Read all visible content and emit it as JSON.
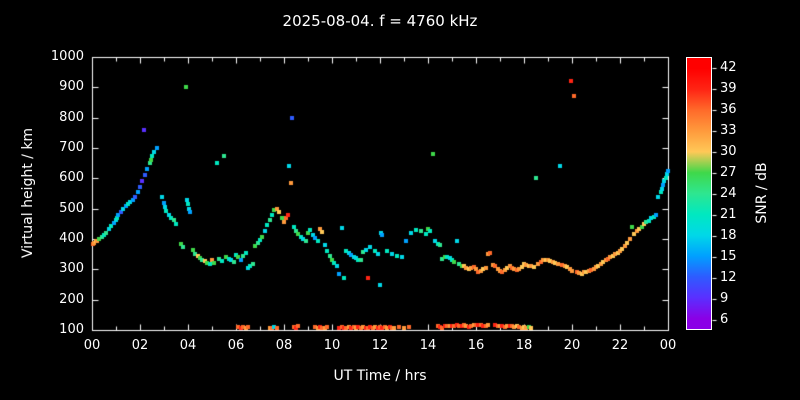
{
  "title": "2025-08-04. f = 4760 kHz",
  "colors": {
    "background": "#000000",
    "frame": "#ffffff",
    "text": "#ffffff"
  },
  "chart_data": {
    "type": "scatter",
    "title": "2025-08-04. f = 4760 kHz",
    "xlabel": "UT Time / hrs",
    "ylabel": "Virtual height / km",
    "colorbar_label": "SNR / dB",
    "xlim": [
      0,
      24
    ],
    "ylim": [
      100,
      1000
    ],
    "grid": false,
    "x_ticks": {
      "values": [
        0,
        2,
        4,
        6,
        8,
        10,
        12,
        14,
        16,
        18,
        20,
        22,
        24
      ],
      "labels": [
        "00",
        "02",
        "04",
        "06",
        "08",
        "10",
        "12",
        "14",
        "16",
        "18",
        "20",
        "22",
        "00"
      ]
    },
    "y_ticks": [
      100,
      200,
      300,
      400,
      500,
      600,
      700,
      800,
      900,
      1000
    ],
    "colorbar": {
      "min": 4.5,
      "max": 43.5,
      "ticks": [
        42,
        39,
        36,
        33,
        30,
        27,
        24,
        21,
        18,
        15,
        12,
        9,
        6
      ],
      "stops": [
        {
          "v": 6,
          "c": "#8a00e6"
        },
        {
          "v": 9,
          "c": "#5a2fff"
        },
        {
          "v": 12,
          "c": "#2e5bff"
        },
        {
          "v": 15,
          "c": "#00a0ff"
        },
        {
          "v": 18,
          "c": "#00d8e8"
        },
        {
          "v": 21,
          "c": "#00e8c0"
        },
        {
          "v": 24,
          "c": "#2ee690"
        },
        {
          "v": 27,
          "c": "#3fd84a"
        },
        {
          "v": 30,
          "c": "#ffc857"
        },
        {
          "v": 33,
          "c": "#ff9a3c"
        },
        {
          "v": 36,
          "c": "#ff6a2a"
        },
        {
          "v": 39,
          "c": "#ff2414"
        },
        {
          "v": 42,
          "c": "#ff0000"
        }
      ]
    },
    "points": [
      [
        0.05,
        385,
        36
      ],
      [
        0.1,
        388,
        33
      ],
      [
        0.15,
        392,
        30
      ],
      [
        0.2,
        395,
        33
      ],
      [
        0.3,
        400,
        27
      ],
      [
        0.4,
        405,
        24
      ],
      [
        0.5,
        412,
        21
      ],
      [
        0.6,
        420,
        24
      ],
      [
        0.7,
        432,
        18
      ],
      [
        0.8,
        442,
        21
      ],
      [
        0.9,
        452,
        15
      ],
      [
        1.0,
        462,
        18
      ],
      [
        1.05,
        470,
        21
      ],
      [
        1.1,
        478,
        15
      ],
      [
        1.2,
        488,
        12
      ],
      [
        1.3,
        498,
        18
      ],
      [
        1.4,
        508,
        15
      ],
      [
        1.5,
        515,
        21
      ],
      [
        1.6,
        522,
        18
      ],
      [
        1.7,
        530,
        15
      ],
      [
        1.8,
        540,
        12
      ],
      [
        1.9,
        555,
        15
      ],
      [
        2.0,
        572,
        12
      ],
      [
        2.1,
        590,
        9
      ],
      [
        2.15,
        760,
        9
      ],
      [
        2.2,
        612,
        12
      ],
      [
        2.3,
        632,
        15
      ],
      [
        2.4,
        650,
        24
      ],
      [
        2.45,
        660,
        27
      ],
      [
        2.5,
        672,
        21
      ],
      [
        2.6,
        688,
        18
      ],
      [
        2.7,
        700,
        15
      ],
      [
        2.9,
        540,
        18
      ],
      [
        3.0,
        520,
        15
      ],
      [
        3.05,
        505,
        18
      ],
      [
        3.1,
        492,
        21
      ],
      [
        3.2,
        480,
        18
      ],
      [
        3.3,
        470,
        21
      ],
      [
        3.4,
        462,
        24
      ],
      [
        3.5,
        450,
        21
      ],
      [
        3.7,
        385,
        27
      ],
      [
        3.8,
        375,
        24
      ],
      [
        3.9,
        900,
        27
      ],
      [
        3.95,
        530,
        18
      ],
      [
        4.0,
        515,
        21
      ],
      [
        4.05,
        500,
        18
      ],
      [
        4.1,
        488,
        15
      ],
      [
        4.2,
        365,
        27
      ],
      [
        4.3,
        352,
        24
      ],
      [
        4.4,
        345,
        30
      ],
      [
        4.5,
        338,
        27
      ],
      [
        4.6,
        332,
        24
      ],
      [
        4.7,
        328,
        30
      ],
      [
        4.8,
        322,
        27
      ],
      [
        4.9,
        318,
        21
      ],
      [
        5.0,
        330,
        33
      ],
      [
        5.1,
        322,
        27
      ],
      [
        5.2,
        650,
        21
      ],
      [
        5.3,
        335,
        24
      ],
      [
        5.4,
        328,
        21
      ],
      [
        5.5,
        675,
        24
      ],
      [
        5.6,
        342,
        27
      ],
      [
        5.7,
        335,
        21
      ],
      [
        5.8,
        330,
        18
      ],
      [
        5.9,
        325,
        24
      ],
      [
        6.0,
        348,
        21
      ],
      [
        6.1,
        340,
        27
      ],
      [
        6.2,
        332,
        15
      ],
      [
        6.3,
        345,
        24
      ],
      [
        6.4,
        355,
        21
      ],
      [
        6.5,
        305,
        18
      ],
      [
        6.6,
        310,
        21
      ],
      [
        6.7,
        318,
        24
      ],
      [
        6.8,
        378,
        27
      ],
      [
        6.9,
        388,
        24
      ],
      [
        7.0,
        398,
        21
      ],
      [
        7.1,
        408,
        27
      ],
      [
        7.2,
        425,
        18
      ],
      [
        7.3,
        445,
        21
      ],
      [
        7.4,
        462,
        24
      ],
      [
        7.5,
        480,
        21
      ],
      [
        7.6,
        495,
        27
      ],
      [
        7.7,
        500,
        33
      ],
      [
        7.8,
        488,
        30
      ],
      [
        7.9,
        470,
        27
      ],
      [
        8.0,
        455,
        33
      ],
      [
        8.1,
        468,
        36
      ],
      [
        8.15,
        478,
        39
      ],
      [
        8.2,
        640,
        18
      ],
      [
        8.3,
        585,
        33
      ],
      [
        8.35,
        800,
        12
      ],
      [
        8.4,
        438,
        21
      ],
      [
        8.5,
        425,
        24
      ],
      [
        8.6,
        415,
        27
      ],
      [
        8.7,
        408,
        21
      ],
      [
        8.8,
        400,
        18
      ],
      [
        8.9,
        395,
        24
      ],
      [
        9.0,
        420,
        27
      ],
      [
        9.1,
        430,
        21
      ],
      [
        9.2,
        412,
        18
      ],
      [
        9.3,
        402,
        15
      ],
      [
        9.4,
        392,
        21
      ],
      [
        9.5,
        432,
        33
      ],
      [
        9.6,
        422,
        30
      ],
      [
        9.7,
        380,
        18
      ],
      [
        9.8,
        362,
        21
      ],
      [
        9.9,
        345,
        24
      ],
      [
        10.0,
        332,
        27
      ],
      [
        10.1,
        322,
        21
      ],
      [
        10.2,
        312,
        18
      ],
      [
        10.3,
        285,
        15
      ],
      [
        10.4,
        435,
        18
      ],
      [
        10.5,
        272,
        21
      ],
      [
        10.6,
        362,
        21
      ],
      [
        10.7,
        355,
        18
      ],
      [
        10.8,
        348,
        15
      ],
      [
        10.9,
        342,
        18
      ],
      [
        11.0,
        338,
        18
      ],
      [
        11.1,
        332,
        21
      ],
      [
        11.2,
        330,
        24
      ],
      [
        11.3,
        358,
        24
      ],
      [
        11.4,
        365,
        18
      ],
      [
        11.5,
        270,
        39
      ],
      [
        11.6,
        372,
        18
      ],
      [
        11.8,
        362,
        21
      ],
      [
        11.9,
        352,
        18
      ],
      [
        12.0,
        250,
        18
      ],
      [
        12.05,
        420,
        18
      ],
      [
        12.1,
        412,
        15
      ],
      [
        12.3,
        362,
        21
      ],
      [
        12.5,
        352,
        18
      ],
      [
        12.7,
        345,
        21
      ],
      [
        12.9,
        340,
        18
      ],
      [
        13.1,
        392,
        15
      ],
      [
        13.3,
        420,
        18
      ],
      [
        13.5,
        430,
        21
      ],
      [
        13.7,
        425,
        24
      ],
      [
        13.9,
        418,
        21
      ],
      [
        14.0,
        432,
        27
      ],
      [
        14.1,
        425,
        21
      ],
      [
        14.2,
        680,
        27
      ],
      [
        14.3,
        392,
        18
      ],
      [
        14.4,
        385,
        21
      ],
      [
        14.5,
        380,
        24
      ],
      [
        14.6,
        335,
        24
      ],
      [
        14.7,
        340,
        27
      ],
      [
        14.8,
        342,
        21
      ],
      [
        14.9,
        338,
        18
      ],
      [
        15.0,
        332,
        21
      ],
      [
        15.1,
        325,
        27
      ],
      [
        15.2,
        392,
        18
      ],
      [
        15.3,
        318,
        24
      ],
      [
        15.4,
        312,
        27
      ],
      [
        15.5,
        310,
        30
      ],
      [
        15.6,
        305,
        33
      ],
      [
        15.7,
        302,
        30
      ],
      [
        15.8,
        305,
        33
      ],
      [
        15.9,
        308,
        36
      ],
      [
        16.0,
        302,
        33
      ],
      [
        16.1,
        292,
        36
      ],
      [
        16.2,
        295,
        33
      ],
      [
        16.3,
        300,
        30
      ],
      [
        16.4,
        305,
        33
      ],
      [
        16.5,
        350,
        33
      ],
      [
        16.6,
        355,
        36
      ],
      [
        16.7,
        315,
        33
      ],
      [
        16.8,
        310,
        36
      ],
      [
        16.9,
        302,
        33
      ],
      [
        17.0,
        296,
        33
      ],
      [
        17.1,
        290,
        36
      ],
      [
        17.2,
        298,
        33
      ],
      [
        17.3,
        305,
        30
      ],
      [
        17.4,
        310,
        33
      ],
      [
        17.5,
        306,
        36
      ],
      [
        17.6,
        302,
        33
      ],
      [
        17.7,
        298,
        36
      ],
      [
        17.8,
        302,
        33
      ],
      [
        17.9,
        308,
        30
      ],
      [
        18.0,
        318,
        30
      ],
      [
        18.1,
        315,
        33
      ],
      [
        18.2,
        312,
        30
      ],
      [
        18.3,
        310,
        33
      ],
      [
        18.4,
        308,
        30
      ],
      [
        18.5,
        600,
        24
      ],
      [
        18.6,
        318,
        33
      ],
      [
        18.7,
        325,
        36
      ],
      [
        18.8,
        330,
        33
      ],
      [
        18.9,
        332,
        30
      ],
      [
        19.0,
        330,
        33
      ],
      [
        19.1,
        328,
        30
      ],
      [
        19.2,
        325,
        33
      ],
      [
        19.3,
        322,
        30
      ],
      [
        19.4,
        318,
        33
      ],
      [
        19.5,
        640,
        18
      ],
      [
        19.6,
        315,
        36
      ],
      [
        19.7,
        312,
        33
      ],
      [
        19.8,
        308,
        30
      ],
      [
        19.9,
        302,
        33
      ],
      [
        19.95,
        920,
        39
      ],
      [
        20.1,
        870,
        36
      ],
      [
        20.0,
        296,
        33
      ],
      [
        20.2,
        290,
        36
      ],
      [
        20.3,
        288,
        33
      ],
      [
        20.4,
        286,
        30
      ],
      [
        20.5,
        290,
        33
      ],
      [
        20.6,
        292,
        30
      ],
      [
        20.7,
        296,
        33
      ],
      [
        20.8,
        298,
        36
      ],
      [
        20.9,
        300,
        33
      ],
      [
        21.0,
        308,
        33
      ],
      [
        21.1,
        312,
        30
      ],
      [
        21.2,
        318,
        33
      ],
      [
        21.3,
        325,
        30
      ],
      [
        21.4,
        330,
        33
      ],
      [
        21.5,
        335,
        36
      ],
      [
        21.6,
        340,
        33
      ],
      [
        21.7,
        345,
        30
      ],
      [
        21.8,
        350,
        33
      ],
      [
        21.9,
        355,
        30
      ],
      [
        22.0,
        360,
        33
      ],
      [
        22.1,
        368,
        30
      ],
      [
        22.2,
        378,
        33
      ],
      [
        22.3,
        388,
        30
      ],
      [
        22.4,
        400,
        33
      ],
      [
        22.5,
        440,
        27
      ],
      [
        22.6,
        418,
        30
      ],
      [
        22.7,
        425,
        33
      ],
      [
        22.8,
        432,
        30
      ],
      [
        22.9,
        440,
        27
      ],
      [
        23.0,
        450,
        30
      ],
      [
        23.1,
        455,
        24
      ],
      [
        23.2,
        460,
        21
      ],
      [
        23.3,
        468,
        18
      ],
      [
        23.4,
        472,
        21
      ],
      [
        23.5,
        480,
        15
      ],
      [
        23.6,
        540,
        18
      ],
      [
        23.7,
        555,
        21
      ],
      [
        23.75,
        565,
        18
      ],
      [
        23.8,
        578,
        15
      ],
      [
        23.85,
        590,
        18
      ],
      [
        23.9,
        600,
        21
      ],
      [
        23.95,
        615,
        18
      ],
      [
        23.98,
        625,
        15
      ],
      [
        6.1,
        110,
        36
      ],
      [
        6.2,
        108,
        39
      ],
      [
        6.3,
        110,
        36
      ],
      [
        6.4,
        108,
        33
      ],
      [
        6.5,
        110,
        36
      ],
      [
        7.4,
        106,
        33
      ],
      [
        7.5,
        108,
        36
      ],
      [
        7.6,
        110,
        18
      ],
      [
        7.7,
        108,
        36
      ],
      [
        8.4,
        110,
        36
      ],
      [
        8.5,
        108,
        39
      ],
      [
        8.6,
        112,
        36
      ],
      [
        9.3,
        110,
        36
      ],
      [
        9.4,
        108,
        33
      ],
      [
        9.5,
        110,
        39
      ],
      [
        9.6,
        106,
        36
      ],
      [
        9.7,
        108,
        33
      ],
      [
        9.8,
        110,
        36
      ],
      [
        10.3,
        108,
        39
      ],
      [
        10.4,
        110,
        36
      ],
      [
        10.5,
        106,
        39
      ],
      [
        10.6,
        108,
        36
      ],
      [
        10.7,
        110,
        33
      ],
      [
        10.8,
        108,
        39
      ],
      [
        10.9,
        110,
        36
      ],
      [
        11.0,
        108,
        33
      ],
      [
        11.1,
        110,
        39
      ],
      [
        11.2,
        108,
        36
      ],
      [
        11.3,
        110,
        33
      ],
      [
        11.4,
        106,
        39
      ],
      [
        11.5,
        108,
        36
      ],
      [
        11.6,
        110,
        39
      ],
      [
        11.7,
        108,
        36
      ],
      [
        11.8,
        110,
        33
      ],
      [
        11.9,
        108,
        39
      ],
      [
        12.0,
        110,
        36
      ],
      [
        12.1,
        108,
        39
      ],
      [
        12.2,
        110,
        36
      ],
      [
        12.3,
        108,
        33
      ],
      [
        12.4,
        110,
        39
      ],
      [
        12.5,
        106,
        36
      ],
      [
        12.6,
        108,
        33
      ],
      [
        12.8,
        110,
        36
      ],
      [
        13.0,
        108,
        33
      ],
      [
        13.2,
        110,
        36
      ],
      [
        14.4,
        112,
        36
      ],
      [
        14.5,
        110,
        39
      ],
      [
        14.6,
        108,
        36
      ],
      [
        14.7,
        112,
        39
      ],
      [
        14.8,
        114,
        36
      ],
      [
        14.9,
        112,
        33
      ],
      [
        15.0,
        114,
        39
      ],
      [
        15.1,
        112,
        36
      ],
      [
        15.2,
        115,
        39
      ],
      [
        15.3,
        114,
        36
      ],
      [
        15.4,
        112,
        39
      ],
      [
        15.5,
        115,
        36
      ],
      [
        15.6,
        112,
        33
      ],
      [
        15.7,
        110,
        39
      ],
      [
        15.8,
        114,
        36
      ],
      [
        15.9,
        116,
        33
      ],
      [
        16.0,
        118,
        36
      ],
      [
        16.1,
        116,
        39
      ],
      [
        16.2,
        115,
        36
      ],
      [
        16.3,
        114,
        39
      ],
      [
        16.4,
        112,
        36
      ],
      [
        16.5,
        115,
        33
      ],
      [
        16.8,
        115,
        39
      ],
      [
        16.9,
        112,
        36
      ],
      [
        17.0,
        114,
        33
      ],
      [
        17.1,
        112,
        39
      ],
      [
        17.2,
        110,
        36
      ],
      [
        17.3,
        112,
        33
      ],
      [
        17.4,
        114,
        39
      ],
      [
        17.5,
        112,
        36
      ],
      [
        17.6,
        110,
        33
      ],
      [
        17.7,
        112,
        30
      ],
      [
        17.8,
        110,
        36
      ],
      [
        17.9,
        108,
        33
      ],
      [
        18.0,
        110,
        30
      ],
      [
        18.1,
        108,
        33
      ],
      [
        18.2,
        110,
        27
      ],
      [
        18.3,
        108,
        30
      ]
    ]
  }
}
